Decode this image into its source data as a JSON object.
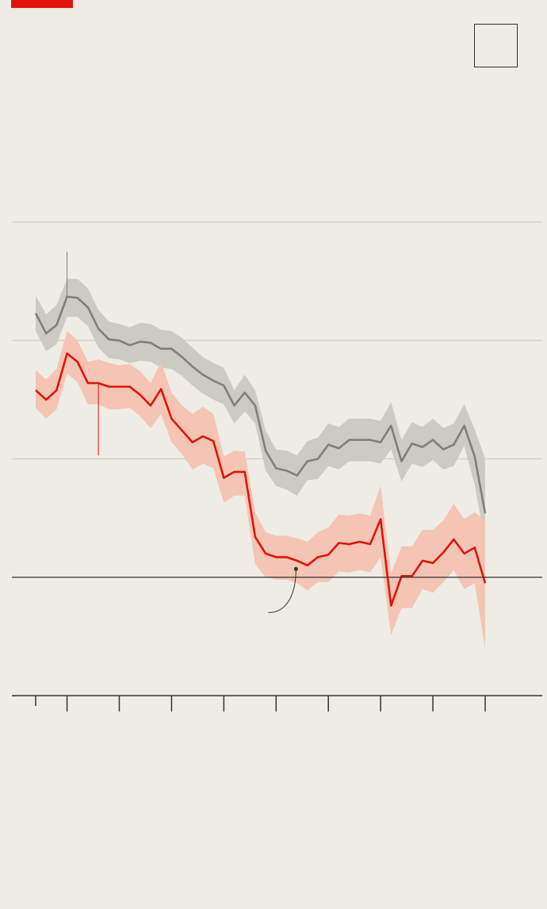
{
  "colors": {
    "background": "#eeece4",
    "brand": "#e3120b",
    "series_red": "#e3120b",
    "band_red": "#f4c4b4",
    "series_grey": "#7f7f7f",
    "band_grey": "#cbcac3",
    "gridline": "#cfcdc6",
    "axis": "#333333"
  },
  "legend_box_icon": "empty-legend-box",
  "chart_data": {
    "type": "line",
    "title": "",
    "xlabel": "",
    "ylabel": "",
    "x": [
      1,
      2,
      3,
      4,
      5,
      6,
      7,
      8,
      9,
      10,
      11,
      12,
      13,
      14,
      15,
      16,
      17,
      18,
      19,
      20,
      21,
      22,
      23,
      24,
      25,
      26,
      27,
      28,
      29,
      30,
      31,
      32,
      33,
      34,
      35,
      36,
      37,
      38,
      39,
      40,
      41,
      42,
      43,
      44
    ],
    "xlim": [
      0,
      51
    ],
    "ylim": [
      -1,
      3
    ],
    "y_gridlines": [
      3,
      2,
      1
    ],
    "y_baseline": 0,
    "x_ticks": [
      1,
      4,
      9,
      14,
      19,
      24,
      29,
      34,
      39,
      44
    ],
    "grid": true,
    "series": [
      {
        "color": "grey",
        "values": [
          2.23,
          2.06,
          2.13,
          2.37,
          2.36,
          2.28,
          2.1,
          2.01,
          2.0,
          1.96,
          1.99,
          1.98,
          1.93,
          1.93,
          1.86,
          1.78,
          1.71,
          1.66,
          1.62,
          1.45,
          1.56,
          1.45,
          1.07,
          0.92,
          0.9,
          0.86,
          0.98,
          1.0,
          1.12,
          1.09,
          1.16,
          1.16,
          1.16,
          1.14,
          1.28,
          0.98,
          1.13,
          1.1,
          1.16,
          1.08,
          1.12,
          1.28,
          1.02,
          0.54
        ],
        "band_upper": [
          2.38,
          2.22,
          2.3,
          2.52,
          2.52,
          2.44,
          2.26,
          2.16,
          2.14,
          2.11,
          2.15,
          2.14,
          2.09,
          2.08,
          2.02,
          1.94,
          1.86,
          1.81,
          1.77,
          1.58,
          1.71,
          1.58,
          1.24,
          1.08,
          1.07,
          1.03,
          1.15,
          1.18,
          1.3,
          1.27,
          1.34,
          1.34,
          1.34,
          1.32,
          1.48,
          1.16,
          1.31,
          1.27,
          1.34,
          1.26,
          1.3,
          1.46,
          1.25,
          1.0
        ],
        "band_lower": [
          2.08,
          1.91,
          1.97,
          2.2,
          2.2,
          2.12,
          1.94,
          1.85,
          1.84,
          1.81,
          1.83,
          1.82,
          1.77,
          1.76,
          1.7,
          1.62,
          1.55,
          1.5,
          1.46,
          1.3,
          1.4,
          1.3,
          0.9,
          0.77,
          0.74,
          0.69,
          0.82,
          0.83,
          0.94,
          0.91,
          0.98,
          0.98,
          0.98,
          0.96,
          1.08,
          0.81,
          0.96,
          0.93,
          0.99,
          0.91,
          0.94,
          1.11,
          0.78,
          0.3
        ]
      },
      {
        "color": "red",
        "values": [
          1.58,
          1.5,
          1.58,
          1.89,
          1.82,
          1.64,
          1.64,
          1.61,
          1.61,
          1.61,
          1.54,
          1.45,
          1.59,
          1.34,
          1.24,
          1.14,
          1.19,
          1.15,
          0.84,
          0.89,
          0.89,
          0.34,
          0.2,
          0.17,
          0.17,
          0.14,
          0.1,
          0.17,
          0.19,
          0.29,
          0.28,
          0.3,
          0.28,
          0.49,
          -0.24,
          0.01,
          0.01,
          0.14,
          0.12,
          0.21,
          0.32,
          0.2,
          0.25,
          -0.05
        ],
        "band_upper": [
          1.75,
          1.67,
          1.76,
          2.08,
          2.0,
          1.82,
          1.84,
          1.81,
          1.79,
          1.8,
          1.74,
          1.64,
          1.82,
          1.56,
          1.45,
          1.38,
          1.44,
          1.38,
          1.02,
          1.07,
          1.06,
          0.55,
          0.38,
          0.35,
          0.35,
          0.33,
          0.3,
          0.38,
          0.42,
          0.53,
          0.52,
          0.54,
          0.52,
          0.77,
          0.03,
          0.26,
          0.26,
          0.4,
          0.4,
          0.48,
          0.62,
          0.49,
          0.55,
          0.48
        ],
        "band_lower": [
          1.43,
          1.34,
          1.42,
          1.72,
          1.65,
          1.46,
          1.46,
          1.42,
          1.42,
          1.43,
          1.36,
          1.26,
          1.38,
          1.14,
          1.04,
          0.91,
          0.96,
          0.92,
          0.63,
          0.69,
          0.69,
          0.11,
          0.0,
          -0.02,
          -0.02,
          -0.05,
          -0.11,
          -0.04,
          -0.04,
          0.05,
          0.04,
          0.06,
          0.04,
          0.17,
          -0.49,
          -0.26,
          -0.26,
          -0.1,
          -0.13,
          -0.04,
          0.06,
          -0.1,
          -0.05,
          -0.6
        ]
      }
    ],
    "annotation_leaders": [
      {
        "series": "grey",
        "x": 4,
        "y_from": 2.37,
        "y_to": 2.75
      },
      {
        "series": "red",
        "x": 7,
        "y_from": 1.64,
        "y_to": 1.03
      }
    ],
    "callout_point": {
      "x": 25.9,
      "y": 0.07
    }
  }
}
